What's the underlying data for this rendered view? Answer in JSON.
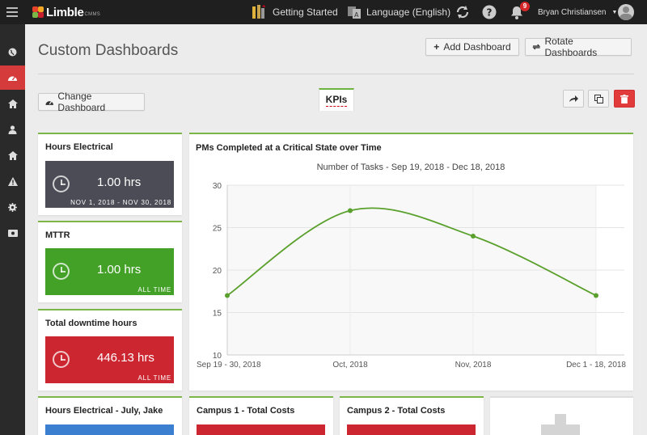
{
  "topbar": {
    "brand": "Limble",
    "brand_sub": "CMMS",
    "getting_started": "Getting Started",
    "language": "Language (English)",
    "notifications_count": "9",
    "user_name": "Bryan Christiansen"
  },
  "page": {
    "title": "Custom Dashboards",
    "add_dashboard": "Add Dashboard",
    "rotate_dashboards": "Rotate Dashboards",
    "change_dashboard": "Change Dashboard",
    "active_tab": "KPIs"
  },
  "colors": {
    "accent_green": "#7ab648",
    "dark_box": "#4b4c55",
    "green_box": "#43a128",
    "red_box": "#cc2630",
    "danger": "#e23b3b"
  },
  "kpis": [
    {
      "title": "Hours Electrical",
      "value": "1.00 hrs",
      "sub": "NOV 1, 2018 - NOV 30, 2018",
      "color": "#4b4c55"
    },
    {
      "title": "MTTR",
      "value": "1.00 hrs",
      "sub": "ALL TIME",
      "color": "#43a128"
    },
    {
      "title": "Total downtime hours",
      "value": "446.13 hrs",
      "sub": "ALL TIME",
      "color": "#cc2630"
    }
  ],
  "bottom_cards": [
    {
      "title": "Hours Electrical - July, Jake",
      "color": "#3a7fd0"
    },
    {
      "title": "Campus 1 - Total Costs",
      "color": "#cc2630"
    },
    {
      "title": "Campus 2 - Total Costs",
      "color": "#cc2630"
    }
  ],
  "chart_data": {
    "type": "line",
    "title": "PMs Completed at a Critical State over Time",
    "subtitle": "Number of Tasks - Sep 19, 2018 - Dec 18, 2018",
    "categories": [
      "Sep 19 - 30, 2018",
      "Oct, 2018",
      "Nov, 2018",
      "Dec 1 - 18, 2018"
    ],
    "values": [
      17,
      27,
      24,
      17
    ],
    "ylim": [
      10,
      30
    ],
    "yticks": [
      10,
      15,
      20,
      25,
      30
    ],
    "grid": true,
    "line_color": "#5aa02c"
  }
}
